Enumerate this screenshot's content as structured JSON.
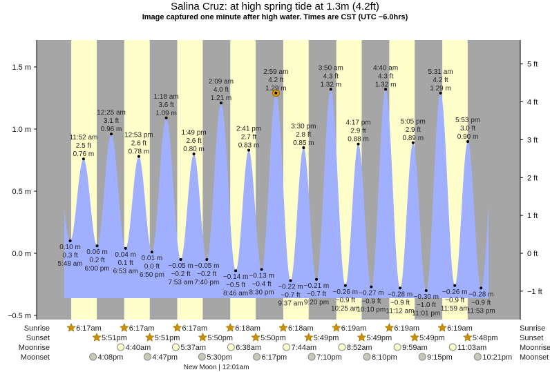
{
  "chart_data": {
    "type": "area",
    "title": "Salina Cruz: at high  spring tide at 1.3m (4.2ft)",
    "subtitle": "Image captured one minute after high water. Times are CST (UTC −6.0hrs)",
    "ylabel_left": "m",
    "ylabel_right": "ft",
    "ylim_m": [
      -0.55,
      1.7
    ],
    "left_ticks": [
      {
        "v": 1.5,
        "label": "1.5 m"
      },
      {
        "v": 1.0,
        "label": "1.0 m"
      },
      {
        "v": 0.5,
        "label": "0.5 m"
      },
      {
        "v": 0.0,
        "label": "0.0 m"
      },
      {
        "v": -0.5,
        "label": "−0.5 m"
      }
    ],
    "right_ticks": [
      {
        "v": 5,
        "label": "5 ft"
      },
      {
        "v": 4,
        "label": "4 ft"
      },
      {
        "v": 3,
        "label": "3 ft"
      },
      {
        "v": 2,
        "label": "2 ft"
      },
      {
        "v": 1,
        "label": "1 ft"
      },
      {
        "v": 0,
        "label": "0 ft"
      },
      {
        "v": -1,
        "label": "−1 ft"
      }
    ],
    "current_event_index": 16,
    "tides": [
      {
        "day": 0,
        "type": "low",
        "time": "5:48 am",
        "m": "0.10 m",
        "ft": "0.3 ft",
        "v": 0.1
      },
      {
        "day": 0,
        "type": "high",
        "time": "11:52 am",
        "m": "0.76 m",
        "ft": "2.5 ft",
        "v": 0.76
      },
      {
        "day": 0,
        "type": "low",
        "time": "6:00 pm",
        "m": "0.06 m",
        "ft": "0.2 ft",
        "v": 0.06
      },
      {
        "day": 1,
        "type": "high",
        "time": "12:25 am",
        "m": "0.96 m",
        "ft": "3.1 ft",
        "v": 0.96
      },
      {
        "day": 1,
        "type": "low",
        "time": "6:53 am",
        "m": "0.04 m",
        "ft": "0.1 ft",
        "v": 0.04
      },
      {
        "day": 1,
        "type": "high",
        "time": "12:53 pm",
        "m": "0.78 m",
        "ft": "2.6 ft",
        "v": 0.78
      },
      {
        "day": 1,
        "type": "low",
        "time": "6:50 pm",
        "m": "0.01 m",
        "ft": "0.0 ft",
        "v": 0.01
      },
      {
        "day": 2,
        "type": "high",
        "time": "1:18 am",
        "m": "1.09 m",
        "ft": "3.6 ft",
        "v": 1.09
      },
      {
        "day": 2,
        "type": "low",
        "time": "7:53 am",
        "m": "−0.05 m",
        "ft": "−0.2 ft",
        "v": -0.05
      },
      {
        "day": 2,
        "type": "high",
        "time": "1:49 pm",
        "m": "0.80 m",
        "ft": "2.6 ft",
        "v": 0.8
      },
      {
        "day": 2,
        "type": "low",
        "time": "7:40 pm",
        "m": "−0.05 m",
        "ft": "−0.2 ft",
        "v": -0.05
      },
      {
        "day": 3,
        "type": "high",
        "time": "2:09 am",
        "m": "1.21 m",
        "ft": "4.0 ft",
        "v": 1.21
      },
      {
        "day": 3,
        "type": "low",
        "time": "8:46 am",
        "m": "−0.14 m",
        "ft": "−0.5 ft",
        "v": -0.14
      },
      {
        "day": 3,
        "type": "high",
        "time": "2:41 pm",
        "m": "0.83 m",
        "ft": "2.7 ft",
        "v": 0.83
      },
      {
        "day": 3,
        "type": "low",
        "time": "8:30 pm",
        "m": "−0.13 m",
        "ft": "−0.4 ft",
        "v": -0.13
      },
      {
        "day": 4,
        "type": "high",
        "time": "2:59 am",
        "m": "1.29 m",
        "ft": "4.2 ft",
        "v": 1.29
      },
      {
        "day": 4,
        "type": "low",
        "time": "9:37 am",
        "m": "−0.22 m",
        "ft": "−0.7 ft",
        "v": -0.22
      },
      {
        "day": 4,
        "type": "high",
        "time": "3:30 pm",
        "m": "0.85 m",
        "ft": "2.8 ft",
        "v": 0.85
      },
      {
        "day": 4,
        "type": "low",
        "time": "9:20 pm",
        "m": "−0.21 m",
        "ft": "−0.7 ft",
        "v": -0.21
      },
      {
        "day": 5,
        "type": "high",
        "time": "3:50 am",
        "m": "1.32 m",
        "ft": "4.3 ft",
        "v": 1.32
      },
      {
        "day": 5,
        "type": "low",
        "time": "10:25 am",
        "m": "−0.26 m",
        "ft": "−0.9 ft",
        "v": -0.26
      },
      {
        "day": 5,
        "type": "high",
        "time": "4:17 pm",
        "m": "0.88 m",
        "ft": "2.9 ft",
        "v": 0.88
      },
      {
        "day": 5,
        "type": "low",
        "time": "10:10 pm",
        "m": "−0.27 m",
        "ft": "−0.9 ft",
        "v": -0.27
      },
      {
        "day": 6,
        "type": "high",
        "time": "4:40 am",
        "m": "1.32 m",
        "ft": "4.3 ft",
        "v": 1.32
      },
      {
        "day": 6,
        "type": "low",
        "time": "11:12 am",
        "m": "−0.28 m",
        "ft": "−0.9 ft",
        "v": -0.28
      },
      {
        "day": 6,
        "type": "high",
        "time": "5:05 pm",
        "m": "0.89 m",
        "ft": "2.9 ft",
        "v": 0.89
      },
      {
        "day": 6,
        "type": "low",
        "time": "11:01 pm",
        "m": "−0.30 m",
        "ft": "−1.0 ft",
        "v": -0.3
      },
      {
        "day": 7,
        "type": "high",
        "time": "5:31 am",
        "m": "1.29 m",
        "ft": "4.2 ft",
        "v": 1.29
      },
      {
        "day": 7,
        "type": "low",
        "time": "11:59 am",
        "m": "−0.26 m",
        "ft": "−0.9 ft",
        "v": -0.26
      },
      {
        "day": 7,
        "type": "high",
        "time": "5:53 pm",
        "m": "0.90 m",
        "ft": "3.0 ft",
        "v": 0.9
      },
      {
        "day": 7,
        "type": "low",
        "time": "11:53 pm",
        "m": "−0.28 m",
        "ft": "−0.9 ft",
        "v": -0.28
      }
    ],
    "rows": {
      "labels": {
        "sunrise": "Sunrise",
        "sunset": "Sunset",
        "moonrise": "Moonrise",
        "moonset": "Moonset"
      },
      "sunrise": [
        "6:17am",
        "6:17am",
        "6:17am",
        "6:18am",
        "6:18am",
        "6:19am",
        "6:19am",
        "6:19am"
      ],
      "sunset": [
        "5:51pm",
        "5:51pm",
        "5:50pm",
        "5:50pm",
        "5:49pm",
        "5:49pm",
        "5:49pm",
        "5:48pm"
      ],
      "moonrise": [
        {
          "day": 1,
          "time": "4:40am"
        },
        {
          "day": 2,
          "time": "5:37am"
        },
        {
          "day": 3,
          "time": "6:38am"
        },
        {
          "day": 4,
          "time": "7:44am"
        },
        {
          "day": 5,
          "time": "8:52am"
        },
        {
          "day": 6,
          "time": "9:59am"
        },
        {
          "day": 7,
          "time": "11:03am"
        }
      ],
      "moonset": [
        {
          "day": 0,
          "time": "4:08pm"
        },
        {
          "day": 1,
          "time": "4:47pm"
        },
        {
          "day": 2,
          "time": "5:30pm"
        },
        {
          "day": 3,
          "time": "6:17pm"
        },
        {
          "day": 4,
          "time": "7:10pm"
        },
        {
          "day": 5,
          "time": "8:10pm"
        },
        {
          "day": 6,
          "time": "9:15pm"
        },
        {
          "day": 7,
          "time": "10:21pm"
        }
      ],
      "moon_phase": {
        "day": 3,
        "time": "12:01am",
        "label": "New Moon | 12:01am"
      }
    },
    "colors": {
      "night": "#a6a6a6",
      "day": "#ffffcc",
      "water": "#a0b0ff",
      "sun": "#c89000",
      "moonrise": "#ffffcc",
      "moonset": "#c8c8b4"
    }
  }
}
